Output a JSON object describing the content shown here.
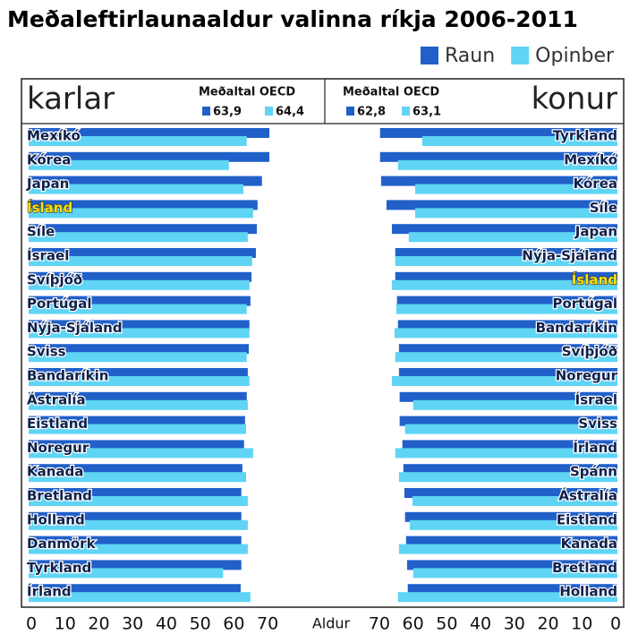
{
  "title": "Meðaleftirlaunaaldur valinna ríkja 2006-2011",
  "chart_data": [
    {
      "type": "bar",
      "orientation": "horizontal",
      "label": "karlar",
      "xlabel": "Aldur",
      "annotation": {
        "title": "Meðaltal OECD",
        "values": [
          63.9,
          64.4
        ],
        "value_labels": [
          "63,9",
          "64,4"
        ]
      },
      "categories": [
        "Mexíkó",
        "Kórea",
        "Japan",
        "Ísland",
        "Síle",
        "Ísrael",
        "Svíþjóð",
        "Portúgal",
        "Nýja-Sjáland",
        "Sviss",
        "Bandaríkin",
        "Ástralía",
        "Eistland",
        "Noregur",
        "Kanada",
        "Bretland",
        "Holland",
        "Danmörk",
        "Tyrkland",
        "Írland"
      ],
      "series": [
        {
          "name": "Raun",
          "color": "#2160c9",
          "values": [
            71.3,
            71.3,
            69.1,
            67.8,
            67.6,
            67.3,
            66.0,
            65.7,
            65.4,
            65.2,
            64.9,
            64.6,
            64.1,
            63.8,
            63.3,
            63.0,
            63.0,
            63.0,
            63.0,
            62.8
          ]
        },
        {
          "name": "Opinber",
          "color": "#5fd4f4",
          "values": [
            64.6,
            59.3,
            63.6,
            66.5,
            64.9,
            66.2,
            65.4,
            64.6,
            65.4,
            64.6,
            65.4,
            64.9,
            64.4,
            66.5,
            64.4,
            64.9,
            64.9,
            64.9,
            57.6,
            65.7
          ]
        }
      ],
      "xlim": [
        0,
        75
      ],
      "xticks": [
        0,
        10,
        20,
        30,
        40,
        50,
        60,
        70
      ],
      "x_reversed": false,
      "highlight": 3
    },
    {
      "type": "bar",
      "orientation": "horizontal",
      "label": "konur",
      "annotation": {
        "title": "Meðaltal OECD",
        "values": [
          62.8,
          63.1
        ],
        "value_labels": [
          "62,8",
          "63,1"
        ]
      },
      "categories": [
        "Tyrkland",
        "Mexíkó",
        "Kórea",
        "Síle",
        "Japan",
        "Nýja-Sjáland",
        "Ísland",
        "Portúgal",
        "Bandaríkin",
        "Svíþjóð",
        "Noregur",
        "Ísrael",
        "Sviss",
        "Írland",
        "Spánn",
        "Ástralía",
        "Eistland",
        "Kanada",
        "Bretland",
        "Holland"
      ],
      "series": [
        {
          "name": "Raun",
          "color": "#2160c9",
          "values": [
            70.3,
            70.3,
            70.0,
            68.4,
            66.8,
            65.8,
            65.8,
            65.3,
            65.0,
            64.7,
            64.7,
            64.5,
            64.5,
            63.7,
            63.4,
            63.1,
            62.9,
            62.6,
            62.3,
            62.1
          ]
        },
        {
          "name": "Opinber",
          "color": "#5fd4f4",
          "values": [
            57.8,
            65.0,
            59.9,
            59.9,
            61.8,
            65.8,
            66.8,
            65.5,
            66.0,
            65.8,
            66.8,
            60.5,
            62.9,
            65.8,
            64.7,
            60.7,
            61.5,
            64.7,
            60.5,
            65.0
          ]
        }
      ],
      "xlim": [
        0,
        75
      ],
      "xticks": [
        0,
        10,
        20,
        30,
        40,
        50,
        60,
        70
      ],
      "x_reversed": true,
      "highlight": 6
    }
  ]
}
